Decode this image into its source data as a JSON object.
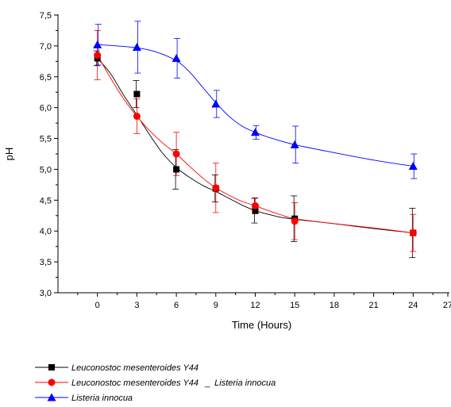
{
  "chart_data": {
    "type": "line",
    "title": "",
    "xlabel": "Time (Hours)",
    "ylabel": "pH",
    "xlim": [
      -3,
      27
    ],
    "ylim": [
      3.0,
      7.5
    ],
    "x_ticks": [
      0,
      3,
      6,
      9,
      12,
      15,
      18,
      21,
      24,
      27
    ],
    "x_tick_labels": [
      "0",
      "3",
      "6",
      "9",
      "12",
      "15",
      "18",
      "21",
      "24",
      "27"
    ],
    "y_ticks": [
      3.0,
      3.5,
      4.0,
      4.5,
      5.0,
      5.5,
      6.0,
      6.5,
      7.0,
      7.5
    ],
    "y_tick_labels": [
      "3,0",
      "3,5",
      "4,0",
      "4,5",
      "5,0",
      "5,5",
      "6,0",
      "6,5",
      "7,0",
      "7,5"
    ],
    "grid": false,
    "legend_position": "bottom-left",
    "x": [
      0,
      3,
      6,
      9,
      12,
      15,
      24
    ],
    "series": [
      {
        "name": "Leuconostoc mesenteroides Y44",
        "name_parts": [
          "Leuconostoc mesenteroides Y44",
          "",
          ""
        ],
        "color": "#000000",
        "marker": "square",
        "values": [
          6.8,
          6.22,
          5.0,
          4.69,
          4.33,
          4.2,
          3.97
        ],
        "errors": [
          0.12,
          0.22,
          0.32,
          0.22,
          0.2,
          0.37,
          0.4
        ],
        "curve": [
          [
            0,
            6.8
          ],
          [
            1,
            6.55
          ],
          [
            2,
            6.2
          ],
          [
            3,
            5.88
          ],
          [
            4,
            5.55
          ],
          [
            5,
            5.25
          ],
          [
            6,
            5.03
          ],
          [
            7,
            4.87
          ],
          [
            8,
            4.74
          ],
          [
            9,
            4.64
          ],
          [
            10,
            4.53
          ],
          [
            11,
            4.42
          ],
          [
            12,
            4.33
          ],
          [
            13,
            4.27
          ],
          [
            14,
            4.22
          ],
          [
            15,
            4.19
          ],
          [
            18,
            4.12
          ],
          [
            21,
            4.04
          ],
          [
            24,
            3.97
          ]
        ]
      },
      {
        "name": "Leuconostoc mesenteroides Y44 _ Listeria innocua",
        "name_parts": [
          "Leuconostoc mesenteroides Y44",
          "_",
          "Listeria innocua"
        ],
        "color": "#ff0000",
        "marker": "circle",
        "values": [
          6.85,
          5.86,
          5.25,
          4.7,
          4.41,
          4.16,
          3.97
        ],
        "errors": [
          0.4,
          0.28,
          0.35,
          0.4,
          0.13,
          0.3,
          0.3
        ],
        "curve": [
          [
            0,
            6.85
          ],
          [
            1,
            6.48
          ],
          [
            2,
            6.14
          ],
          [
            3,
            5.86
          ],
          [
            4,
            5.62
          ],
          [
            5,
            5.42
          ],
          [
            6,
            5.25
          ],
          [
            7,
            5.05
          ],
          [
            8,
            4.86
          ],
          [
            9,
            4.7
          ],
          [
            10,
            4.58
          ],
          [
            11,
            4.48
          ],
          [
            12,
            4.41
          ],
          [
            13,
            4.33
          ],
          [
            14,
            4.26
          ],
          [
            15,
            4.2
          ],
          [
            18,
            4.12
          ],
          [
            21,
            4.05
          ],
          [
            24,
            3.97
          ]
        ]
      },
      {
        "name": "Listeria innocua",
        "name_parts": [
          "Listeria innocua",
          "",
          ""
        ],
        "color": "#0000ff",
        "marker": "triangle",
        "values": [
          7.02,
          6.98,
          6.8,
          6.06,
          5.6,
          5.4,
          5.05
        ],
        "errors": [
          0.33,
          0.42,
          0.32,
          0.22,
          0.11,
          0.3,
          0.2
        ],
        "curve": [
          [
            0,
            7.02
          ],
          [
            1.5,
            7.0
          ],
          [
            3,
            6.97
          ],
          [
            4.5,
            6.9
          ],
          [
            6,
            6.76
          ],
          [
            7,
            6.58
          ],
          [
            8,
            6.33
          ],
          [
            9,
            6.08
          ],
          [
            10,
            5.86
          ],
          [
            11,
            5.7
          ],
          [
            12,
            5.6
          ],
          [
            13,
            5.52
          ],
          [
            15,
            5.4
          ],
          [
            18,
            5.27
          ],
          [
            21,
            5.15
          ],
          [
            24,
            5.05
          ]
        ]
      }
    ]
  }
}
